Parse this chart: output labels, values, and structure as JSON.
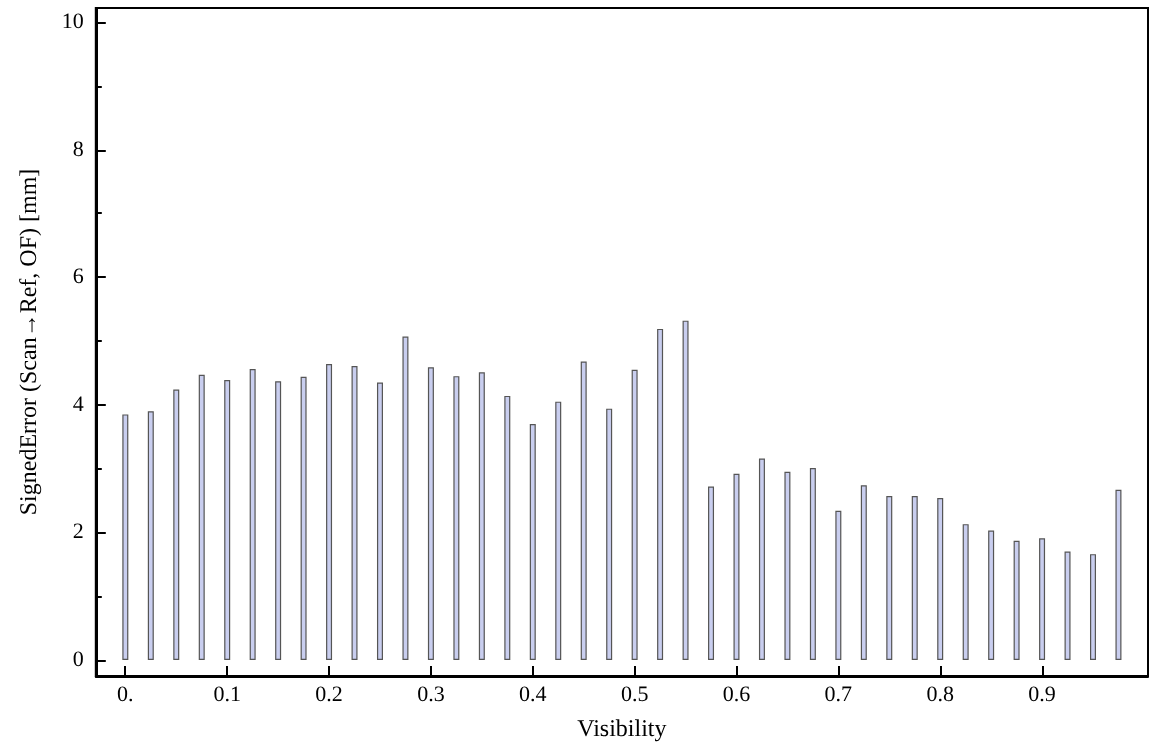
{
  "chart_data": {
    "type": "bar",
    "xlabel": "Visibility",
    "ylabel": "SignedError (Scan→Ref, OF) [mm]",
    "x": [
      0,
      0.025,
      0.05,
      0.075,
      0.1,
      0.125,
      0.15,
      0.175,
      0.2,
      0.225,
      0.25,
      0.275,
      0.3,
      0.325,
      0.35,
      0.375,
      0.4,
      0.425,
      0.45,
      0.475,
      0.5,
      0.525,
      0.55,
      0.575,
      0.6,
      0.625,
      0.65,
      0.675,
      0.7,
      0.725,
      0.75,
      0.775,
      0.8,
      0.825,
      0.85,
      0.875,
      0.9,
      0.925,
      0.95,
      0.975
    ],
    "values": [
      3.85,
      3.9,
      4.24,
      4.47,
      4.39,
      4.56,
      4.37,
      4.44,
      4.64,
      4.61,
      4.35,
      5.07,
      4.59,
      4.45,
      4.51,
      4.14,
      3.7,
      4.05,
      4.68,
      3.94,
      4.55,
      5.19,
      5.32,
      2.72,
      2.92,
      3.16,
      2.95,
      3.01,
      2.34,
      2.74,
      2.57,
      2.57,
      2.54,
      2.13,
      2.03,
      1.87,
      1.91,
      1.7,
      1.66,
      2.67
    ],
    "color": "#c9ceef",
    "xlim": [
      -0.029,
      1.004
    ],
    "xticks": [
      {
        "value": 0,
        "label": "0."
      },
      0.1,
      0.2,
      0.3,
      0.4,
      0.5,
      0.6,
      0.7,
      0.8,
      0.9
    ],
    "ylim": [
      -0.25,
      10.22
    ],
    "yticks": [
      0,
      2,
      4,
      6,
      8,
      10
    ]
  }
}
